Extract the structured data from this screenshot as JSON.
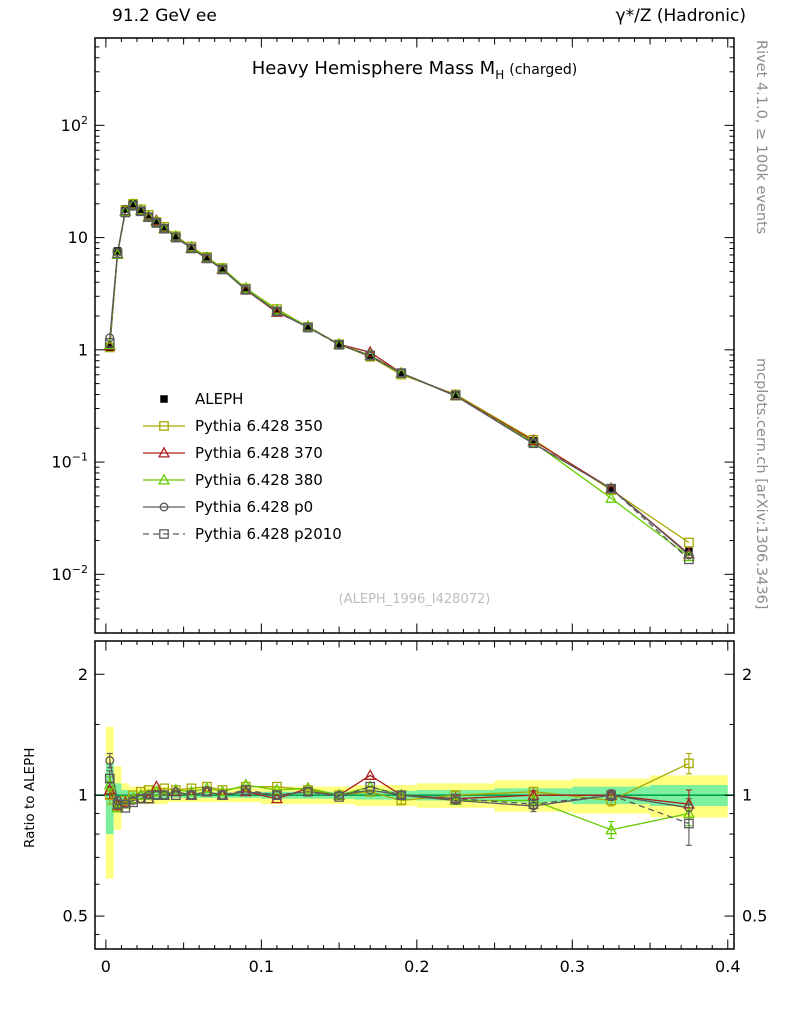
{
  "header": {
    "left": "91.2 GeV ee",
    "right": "γ*/Z (Hadronic)"
  },
  "title": {
    "main": "Heavy Hemisphere Mass M",
    "sub": "H",
    "suffix": "(charged)"
  },
  "watermark": "(ALEPH_1996_I428072)",
  "side_labels": {
    "top_right": "Rivet 4.1.0, ≥ 100k events",
    "bottom_right": "mcplots.cern.ch [arXiv:1306.3436]",
    "ratio_axis": "Ratio to ALEPH"
  },
  "chart_data": {
    "type": "line",
    "title": "Heavy Hemisphere Mass MH (charged)",
    "xlabel": "",
    "ylabel": "",
    "ratio_ylabel": "Ratio to ALEPH",
    "xlim": [
      -0.007,
      0.404
    ],
    "x_ticks": [
      {
        "v": 0,
        "label": "0"
      },
      {
        "v": 0.1,
        "label": "0.1"
      },
      {
        "v": 0.2,
        "label": "0.2"
      },
      {
        "v": 0.3,
        "label": "0.3"
      },
      {
        "v": 0.4,
        "label": "0.4"
      }
    ],
    "main": {
      "ylim": [
        0.003,
        600
      ],
      "yticks": [
        {
          "v": 0.01,
          "base": "10",
          "exp": "−2"
        },
        {
          "v": 0.1,
          "base": "10",
          "exp": "−1"
        },
        {
          "v": 1,
          "base": "1"
        },
        {
          "v": 10,
          "base": "10"
        },
        {
          "v": 100,
          "base": "10",
          "exp": "2"
        }
      ]
    },
    "ratio": {
      "ylim": [
        0.414,
        2.42
      ],
      "yticks": [
        {
          "v": 0.5,
          "label": "0.5"
        },
        {
          "v": 1,
          "label": "1"
        },
        {
          "v": 2,
          "label": "2"
        }
      ],
      "minor_ticks": [
        0.45,
        0.6,
        0.7,
        0.8,
        0.9,
        1.5
      ]
    },
    "bin_edges": [
      0,
      0.005,
      0.01,
      0.015,
      0.02,
      0.025,
      0.03,
      0.035,
      0.04,
      0.05,
      0.06,
      0.07,
      0.08,
      0.1,
      0.12,
      0.14,
      0.16,
      0.18,
      0.2,
      0.25,
      0.3,
      0.35,
      0.4
    ],
    "x": [
      0.0025,
      0.0075,
      0.0125,
      0.0175,
      0.0225,
      0.0275,
      0.0325,
      0.0375,
      0.045,
      0.055,
      0.065,
      0.075,
      0.09,
      0.11,
      0.13,
      0.15,
      0.17,
      0.19,
      0.225,
      0.275,
      0.325,
      0.375
    ],
    "reference": {
      "name": "ALEPH",
      "color": "#000000",
      "marker": "square",
      "values": [
        1.05,
        7.6,
        18.0,
        20.0,
        17.5,
        15.5,
        13.5,
        12.0,
        10.0,
        8.0,
        6.4,
        5.2,
        3.35,
        2.2,
        1.55,
        1.12,
        0.85,
        0.62,
        0.4,
        0.155,
        0.058,
        0.016
      ]
    },
    "series": [
      {
        "name": "Pythia 6.428 350",
        "color": "#a8a800",
        "marker": "square",
        "line": "solid",
        "ratio": [
          1.0,
          0.95,
          0.97,
          1.0,
          1.02,
          1.03,
          1.02,
          1.04,
          1.03,
          1.04,
          1.05,
          1.03,
          1.05,
          1.05,
          1.03,
          1.0,
          1.02,
          0.97,
          1.0,
          1.02,
          0.97,
          1.2
        ],
        "ratio_err": [
          0.05,
          0.02,
          0.01,
          0.01,
          0.01,
          0.01,
          0.01,
          0.01,
          0.01,
          0.01,
          0.01,
          0.01,
          0.01,
          0.01,
          0.01,
          0.015,
          0.015,
          0.02,
          0.02,
          0.025,
          0.03,
          0.07
        ]
      },
      {
        "name": "Pythia 6.428 370",
        "color": "#aa2020",
        "marker": "triangle",
        "line": "solid",
        "ratio": [
          1.03,
          0.94,
          0.96,
          0.98,
          1.0,
          0.98,
          1.05,
          1.0,
          1.02,
          1.0,
          1.02,
          1.0,
          1.02,
          0.98,
          1.04,
          1.0,
          1.12,
          1.0,
          0.98,
          1.0,
          1.0,
          0.95
        ],
        "ratio_err": [
          0.05,
          0.02,
          0.01,
          0.01,
          0.01,
          0.01,
          0.01,
          0.01,
          0.01,
          0.01,
          0.01,
          0.01,
          0.01,
          0.01,
          0.01,
          0.015,
          0.015,
          0.02,
          0.02,
          0.025,
          0.03,
          0.08
        ]
      },
      {
        "name": "Pythia 6.428 380",
        "color": "#66cc00",
        "marker": "triangle",
        "line": "solid",
        "ratio": [
          1.06,
          0.93,
          0.95,
          0.98,
          1.0,
          1.0,
          1.02,
          1.0,
          1.03,
          1.02,
          1.04,
          1.02,
          1.06,
          1.03,
          1.04,
          1.0,
          1.05,
          1.0,
          0.97,
          0.97,
          0.82,
          0.9
        ],
        "ratio_err": [
          0.05,
          0.02,
          0.01,
          0.01,
          0.01,
          0.01,
          0.01,
          0.01,
          0.01,
          0.01,
          0.01,
          0.01,
          0.01,
          0.01,
          0.01,
          0.015,
          0.015,
          0.02,
          0.02,
          0.025,
          0.04,
          0.06
        ]
      },
      {
        "name": "Pythia 6.428 p0",
        "color": "#5a5a5a",
        "marker": "circle",
        "line": "solid",
        "ratio": [
          1.22,
          0.97,
          0.95,
          0.97,
          0.98,
          1.0,
          1.0,
          1.0,
          1.02,
          1.0,
          1.02,
          1.0,
          1.02,
          1.0,
          1.02,
          1.0,
          1.03,
          1.0,
          0.97,
          0.94,
          1.0,
          0.93
        ],
        "ratio_err": [
          0.05,
          0.02,
          0.01,
          0.01,
          0.01,
          0.01,
          0.01,
          0.01,
          0.01,
          0.01,
          0.01,
          0.01,
          0.01,
          0.01,
          0.01,
          0.015,
          0.015,
          0.02,
          0.02,
          0.03,
          0.03,
          0.05
        ]
      },
      {
        "name": "Pythia 6.428 p2010",
        "color": "#5a5a5a",
        "marker": "square",
        "line": "dashed",
        "ratio": [
          1.1,
          0.95,
          0.93,
          0.96,
          0.98,
          0.98,
          1.0,
          1.0,
          1.0,
          1.0,
          1.02,
          1.0,
          1.03,
          1.0,
          1.02,
          0.99,
          1.05,
          1.0,
          0.98,
          0.95,
          1.0,
          0.85
        ],
        "ratio_err": [
          0.05,
          0.02,
          0.01,
          0.01,
          0.01,
          0.01,
          0.01,
          0.01,
          0.01,
          0.01,
          0.01,
          0.01,
          0.01,
          0.01,
          0.01,
          0.015,
          0.015,
          0.02,
          0.02,
          0.025,
          0.03,
          0.1
        ]
      }
    ],
    "bands": {
      "yellow": "#ffff80",
      "green": "#7df0a0",
      "line_color": "#00a651",
      "yellow_lo": [
        0.62,
        0.82,
        0.93,
        0.95,
        0.95,
        0.95,
        0.95,
        0.95,
        0.96,
        0.96,
        0.96,
        0.96,
        0.96,
        0.95,
        0.95,
        0.95,
        0.94,
        0.94,
        0.93,
        0.91,
        0.9,
        0.88
      ],
      "yellow_hi": [
        1.48,
        1.18,
        1.07,
        1.05,
        1.05,
        1.05,
        1.05,
        1.05,
        1.04,
        1.04,
        1.04,
        1.04,
        1.04,
        1.05,
        1.05,
        1.05,
        1.06,
        1.06,
        1.07,
        1.09,
        1.1,
        1.12
      ],
      "green_lo": [
        0.8,
        0.93,
        0.97,
        0.98,
        0.98,
        0.98,
        0.98,
        0.98,
        0.985,
        0.985,
        0.985,
        0.985,
        0.985,
        0.98,
        0.98,
        0.98,
        0.975,
        0.975,
        0.97,
        0.96,
        0.95,
        0.94
      ],
      "green_hi": [
        1.2,
        1.07,
        1.03,
        1.02,
        1.02,
        1.02,
        1.02,
        1.02,
        1.015,
        1.015,
        1.015,
        1.015,
        1.015,
        1.02,
        1.02,
        1.02,
        1.025,
        1.025,
        1.03,
        1.04,
        1.05,
        1.06
      ]
    },
    "legend_position": "middle-left"
  }
}
